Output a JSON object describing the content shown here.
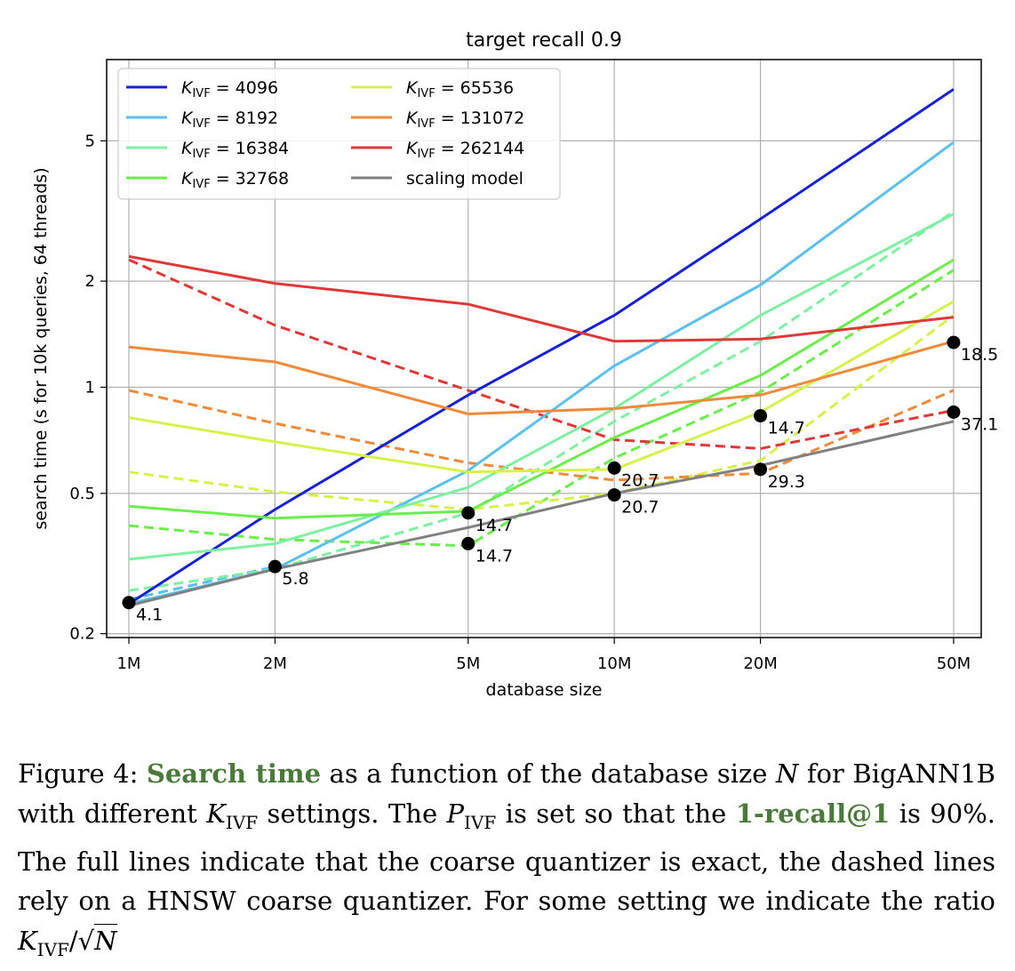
{
  "chart_data": {
    "type": "line",
    "title": "target recall 0.9",
    "xlabel": "database size",
    "ylabel": "search time (s for 10k queries, 64 threads)",
    "x": [
      1,
      2,
      5,
      10,
      20,
      50
    ],
    "x_unit": "M",
    "x_ticks": [
      "1M",
      "2M",
      "5M",
      "10M",
      "20M",
      "50M"
    ],
    "y_ticks": [
      "0.2",
      "0.5",
      "1",
      "2",
      "5"
    ],
    "y_tick_values": [
      0.2,
      0.5,
      1,
      2,
      5
    ],
    "xscale": "log",
    "yscale": "log",
    "xlim": [
      0.9,
      57
    ],
    "ylim": [
      0.195,
      8.5
    ],
    "grid": true,
    "legend_position": "top-left",
    "series": [
      {
        "name": "K_IVF = 4096",
        "color": "#1520d8",
        "style": "solid",
        "values": [
          0.243,
          0.45,
          0.95,
          1.6,
          3.0,
          7.0
        ]
      },
      {
        "name": "K_IVF = 8192",
        "color": "#5ac0ee",
        "style": "solid",
        "values": [
          0.243,
          0.305,
          0.58,
          1.15,
          1.95,
          4.95
        ]
      },
      {
        "name": "K_IVF = 16384",
        "color": "#7ef0a2",
        "style": "solid",
        "values": [
          0.325,
          0.36,
          0.52,
          0.87,
          1.6,
          3.1
        ]
      },
      {
        "name": "K_IVF = 32768",
        "color": "#6aee4a",
        "style": "solid",
        "values": [
          0.46,
          0.425,
          0.445,
          0.72,
          1.08,
          2.3
        ]
      },
      {
        "name": "K_IVF = 65536",
        "color": "#d8f04a",
        "style": "solid",
        "values": [
          0.82,
          0.7,
          0.575,
          0.585,
          0.85,
          1.75
        ]
      },
      {
        "name": "K_IVF = 131072",
        "color": "#ee8a3a",
        "style": "solid",
        "values": [
          1.3,
          1.18,
          0.84,
          0.87,
          0.95,
          1.35
        ]
      },
      {
        "name": "K_IVF = 262144",
        "color": "#e03838",
        "style": "solid",
        "values": [
          2.35,
          1.97,
          1.72,
          1.35,
          1.37,
          1.58
        ]
      },
      {
        "name": "",
        "color": "#5ac0ee",
        "style": "dashed",
        "values": [
          0.25,
          0.31,
          null,
          null,
          null,
          null
        ]
      },
      {
        "name": "",
        "color": "#7ef0a2",
        "style": "dashed",
        "values": [
          0.265,
          0.305,
          0.44,
          0.8,
          1.35,
          3.15
        ]
      },
      {
        "name": "",
        "color": "#6aee4a",
        "style": "dashed",
        "values": [
          0.405,
          0.37,
          0.355,
          0.63,
          0.97,
          2.15
        ]
      },
      {
        "name": "",
        "color": "#d8f04a",
        "style": "dashed",
        "values": [
          0.575,
          0.505,
          0.45,
          0.5,
          0.62,
          1.6
        ]
      },
      {
        "name": "",
        "color": "#ee8a3a",
        "style": "dashed",
        "values": [
          0.98,
          0.79,
          0.61,
          0.545,
          0.57,
          0.98
        ]
      },
      {
        "name": "",
        "color": "#e03838",
        "style": "dashed",
        "values": [
          2.3,
          1.5,
          0.98,
          0.71,
          0.67,
          0.86
        ]
      },
      {
        "name": "scaling model",
        "color": "#808080",
        "style": "solid",
        "values": [
          0.24,
          0.305,
          0.4,
          0.5,
          0.6,
          0.8
        ]
      }
    ],
    "points": [
      {
        "x": 1,
        "y": 0.245,
        "label": "4.1"
      },
      {
        "x": 2,
        "y": 0.31,
        "label": "5.8"
      },
      {
        "x": 5,
        "y": 0.44,
        "label": "14.7"
      },
      {
        "x": 5,
        "y": 0.36,
        "label": "14.7"
      },
      {
        "x": 10,
        "y": 0.59,
        "label": "20.7"
      },
      {
        "x": 10,
        "y": 0.495,
        "label": "20.7"
      },
      {
        "x": 20,
        "y": 0.83,
        "label": "14.7"
      },
      {
        "x": 20,
        "y": 0.585,
        "label": "29.3"
      },
      {
        "x": 50,
        "y": 1.34,
        "label": "18.5"
      },
      {
        "x": 50,
        "y": 0.85,
        "label": "37.1"
      }
    ],
    "legend": {
      "entries": [
        {
          "series": 0,
          "sub": "IVF",
          "value": "4096"
        },
        {
          "series": 1,
          "sub": "IVF",
          "value": "8192"
        },
        {
          "series": 2,
          "sub": "IVF",
          "value": "16384"
        },
        {
          "series": 3,
          "sub": "IVF",
          "value": "32768"
        },
        {
          "series": 4,
          "sub": "IVF",
          "value": "65536"
        },
        {
          "series": 5,
          "sub": "IVF",
          "value": "131072"
        },
        {
          "series": 6,
          "sub": "IVF",
          "value": "262144"
        },
        {
          "series": 13,
          "text": "scaling model"
        }
      ]
    }
  },
  "caption": {
    "prefix": "Figure 4: ",
    "highlight1": "Search time",
    "part1": " as a function of the database size ",
    "n_var": "N",
    "part2": " for BigANN1B with different ",
    "k_var": "K",
    "k_sub": "IVF",
    "part3": " settings. The ",
    "p_var": "P",
    "p_sub": "IVF",
    "part4": " is set so that the ",
    "highlight2": "1-recall@1",
    "part5": " is 90%. The full lines indicate that the coarse quantizer is exact, the dashed lines rely on a HNSW coarse quantizer. For some setting we indicate the ratio ",
    "ratio_k": "K",
    "ratio_sub": "IVF",
    "ratio_slash": "/√",
    "ratio_n": "N"
  }
}
